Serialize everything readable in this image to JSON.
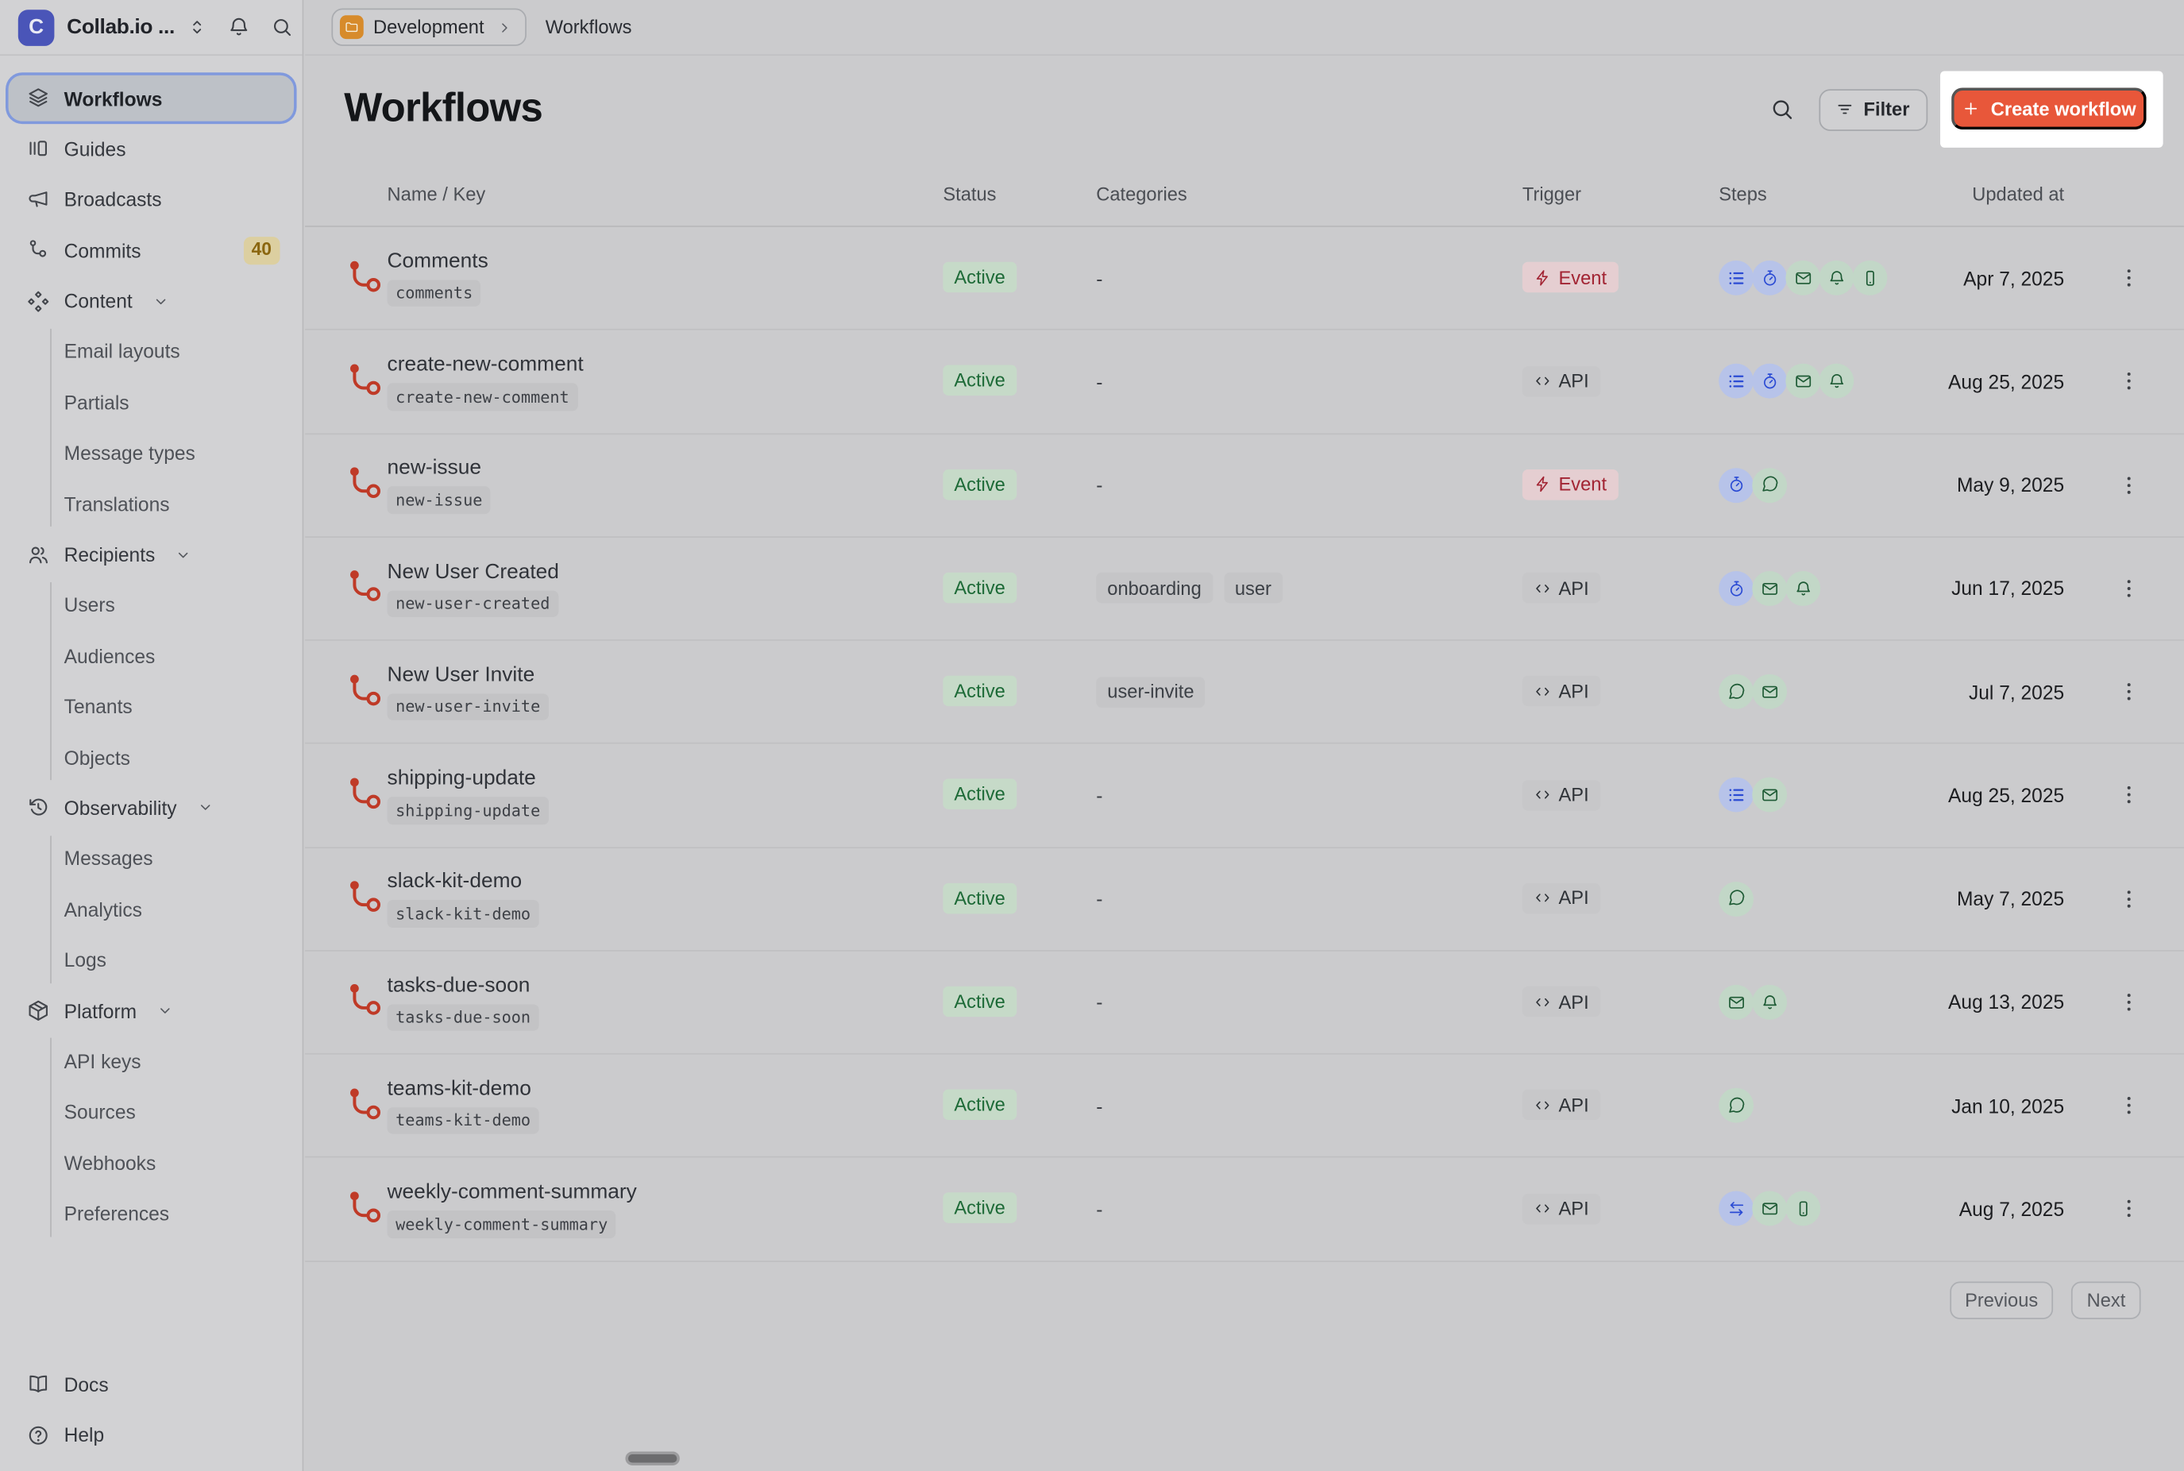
{
  "sidebar": {
    "workspace": {
      "initial": "C",
      "name": "Collab.io ..."
    },
    "items": [
      {
        "label": "Workflows",
        "icon": "layers",
        "selected": true
      },
      {
        "label": "Guides",
        "icon": "guides"
      },
      {
        "label": "Broadcasts",
        "icon": "megaphone"
      },
      {
        "label": "Commits",
        "icon": "branch",
        "badge": "40"
      },
      {
        "label": "Content",
        "icon": "shapes",
        "children": [
          "Email layouts",
          "Partials",
          "Message types",
          "Translations"
        ]
      },
      {
        "label": "Recipients",
        "icon": "users",
        "children": [
          "Users",
          "Audiences",
          "Tenants",
          "Objects"
        ]
      },
      {
        "label": "Observability",
        "icon": "history",
        "children": [
          "Messages",
          "Analytics",
          "Logs"
        ]
      },
      {
        "label": "Platform",
        "icon": "package",
        "children": [
          "API keys",
          "Sources",
          "Webhooks",
          "Preferences"
        ]
      }
    ],
    "footer": [
      {
        "label": "Docs",
        "icon": "book"
      },
      {
        "label": "Help",
        "icon": "help"
      }
    ]
  },
  "topbar": {
    "environment": "Development",
    "page": "Workflows"
  },
  "header": {
    "title": "Workflows",
    "filter_label": "Filter",
    "create_label": "Create workflow"
  },
  "table": {
    "columns": [
      "Name / Key",
      "Status",
      "Categories",
      "Trigger",
      "Steps",
      "Updated at"
    ],
    "empty_value": "-",
    "rows": [
      {
        "name": "Comments",
        "key": "comments",
        "status": "Active",
        "categories": [],
        "trigger": "Event",
        "steps": [
          "list",
          "timer",
          "mail",
          "bell",
          "mobile"
        ],
        "updated": "Apr 7, 2025"
      },
      {
        "name": "create-new-comment",
        "key": "create-new-comment",
        "status": "Active",
        "categories": [],
        "trigger": "API",
        "steps": [
          "list",
          "timer",
          "mail",
          "bell"
        ],
        "updated": "Aug 25, 2025"
      },
      {
        "name": "new-issue",
        "key": "new-issue",
        "status": "Active",
        "categories": [],
        "trigger": "Event",
        "steps": [
          "timer",
          "chat"
        ],
        "updated": "May 9, 2025"
      },
      {
        "name": "New User Created",
        "key": "new-user-created",
        "status": "Active",
        "categories": [
          "onboarding",
          "user"
        ],
        "trigger": "API",
        "steps": [
          "timer",
          "mail",
          "bell"
        ],
        "updated": "Jun 17, 2025"
      },
      {
        "name": "New User Invite",
        "key": "new-user-invite",
        "status": "Active",
        "categories": [
          "user-invite"
        ],
        "trigger": "API",
        "steps": [
          "chat",
          "mail"
        ],
        "updated": "Jul 7, 2025"
      },
      {
        "name": "shipping-update",
        "key": "shipping-update",
        "status": "Active",
        "categories": [],
        "trigger": "API",
        "steps": [
          "list",
          "mail"
        ],
        "updated": "Aug 25, 2025"
      },
      {
        "name": "slack-kit-demo",
        "key": "slack-kit-demo",
        "status": "Active",
        "categories": [],
        "trigger": "API",
        "steps": [
          "chat"
        ],
        "updated": "May 7, 2025"
      },
      {
        "name": "tasks-due-soon",
        "key": "tasks-due-soon",
        "status": "Active",
        "categories": [],
        "trigger": "API",
        "steps": [
          "mail",
          "bell"
        ],
        "updated": "Aug 13, 2025"
      },
      {
        "name": "teams-kit-demo",
        "key": "teams-kit-demo",
        "status": "Active",
        "categories": [],
        "trigger": "API",
        "steps": [
          "chat"
        ],
        "updated": "Jan 10, 2025"
      },
      {
        "name": "weekly-comment-summary",
        "key": "weekly-comment-summary",
        "status": "Active",
        "categories": [],
        "trigger": "API",
        "steps": [
          "swap",
          "mail",
          "mobile"
        ],
        "updated": "Aug 7, 2025"
      }
    ]
  },
  "pagination": {
    "previous": "Previous",
    "next": "Next"
  },
  "colors": {
    "accent_orange": "#e8573a",
    "highlight_white": "#ffffff",
    "status_active_bg": "#c6dac8",
    "status_active_text": "#1d6a37",
    "event_badge_bg": "#e5ced1",
    "event_badge_text": "#a22433",
    "api_badge_bg": "#c7c7c9",
    "step_blue": "#2b4bd4",
    "step_green": "#1d5a34",
    "workflow_icon_red": "#bf3a27",
    "commits_badge_bg": "#dccfa0",
    "logo_blue": "#4a55b8",
    "folder_orange": "#d78b2b"
  }
}
